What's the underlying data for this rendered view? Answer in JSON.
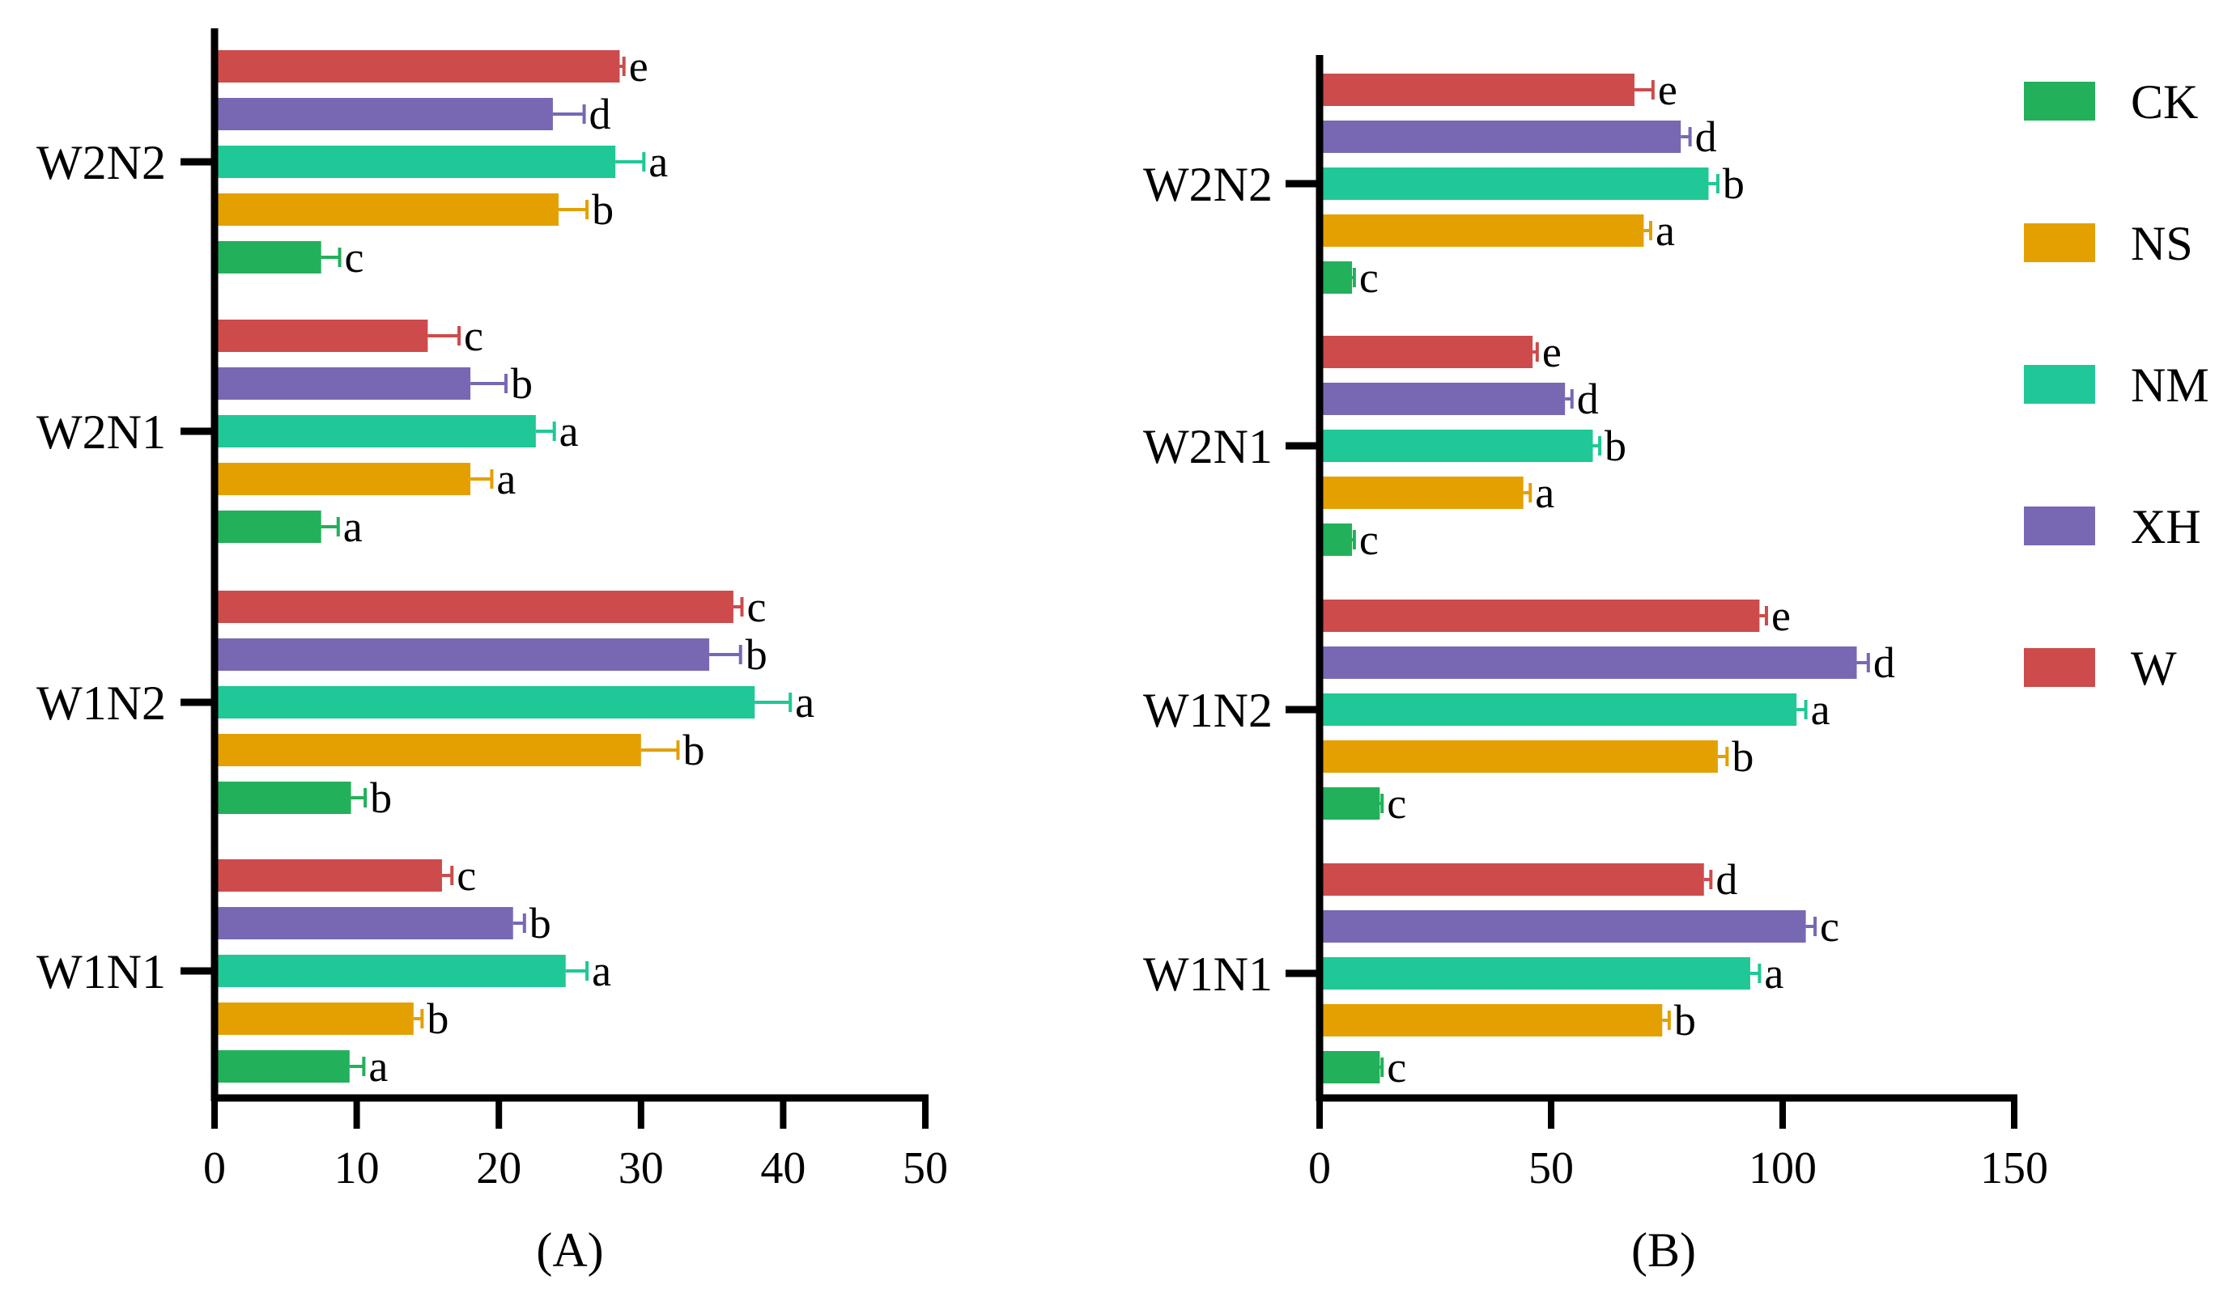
{
  "colors": {
    "CK": "#22b05a",
    "NS": "#e3a000",
    "NM": "#1fc896",
    "XH": "#7868b4",
    "W": "#cd4b4b",
    "axis": "#000000"
  },
  "legend": {
    "position": "right",
    "items": [
      "CK",
      "NS",
      "NM",
      "XH",
      "W"
    ]
  },
  "chart_data": [
    {
      "type": "bar",
      "orientation": "horizontal",
      "panel_label": "(A)",
      "title": "",
      "xlabel": "",
      "ylabel": "",
      "xlim": [
        0,
        50
      ],
      "xticks": [
        0,
        10,
        20,
        30,
        40,
        50
      ],
      "categories": [
        "W1N1",
        "W1N2",
        "W2N1",
        "W2N2"
      ],
      "series": [
        {
          "name": "CK",
          "values": [
            9.5,
            9.6,
            7.5,
            7.5
          ],
          "errors": [
            1.0,
            1.0,
            1.2,
            1.3
          ],
          "letters": [
            "a",
            "b",
            "a",
            "c"
          ]
        },
        {
          "name": "NS",
          "values": [
            14.0,
            30.0,
            18.0,
            24.2
          ],
          "errors": [
            0.6,
            2.6,
            1.5,
            2.0
          ],
          "letters": [
            "b",
            "b",
            "a",
            "b"
          ]
        },
        {
          "name": "NM",
          "values": [
            24.7,
            38.0,
            22.6,
            28.2
          ],
          "errors": [
            1.5,
            2.5,
            1.3,
            2.0
          ],
          "letters": [
            "a",
            "a",
            "a",
            "a"
          ]
        },
        {
          "name": "XH",
          "values": [
            21.0,
            34.8,
            18.0,
            23.8
          ],
          "errors": [
            0.8,
            2.2,
            2.5,
            2.2
          ],
          "letters": [
            "b",
            "b",
            "b",
            "d"
          ]
        },
        {
          "name": "W",
          "values": [
            16.0,
            36.5,
            15.0,
            28.5
          ],
          "errors": [
            0.7,
            0.6,
            2.2,
            0.3
          ],
          "letters": [
            "c",
            "c",
            "c",
            "e"
          ]
        }
      ]
    },
    {
      "type": "bar",
      "orientation": "horizontal",
      "panel_label": "(B)",
      "title": "",
      "xlabel": "",
      "ylabel": "",
      "xlim": [
        0,
        150
      ],
      "xticks": [
        0,
        50,
        100,
        150
      ],
      "categories": [
        "W1N1",
        "W1N2",
        "W2N1",
        "W2N2"
      ],
      "series": [
        {
          "name": "CK",
          "values": [
            13.0,
            13.0,
            7.0,
            7.0
          ],
          "errors": [
            0.5,
            0.5,
            0.5,
            0.5
          ],
          "letters": [
            "c",
            "c",
            "c",
            "c"
          ]
        },
        {
          "name": "NS",
          "values": [
            74.0,
            86.0,
            44.0,
            70.0
          ],
          "errors": [
            1.5,
            2.0,
            1.5,
            1.5
          ],
          "letters": [
            "b",
            "b",
            "a",
            "a"
          ]
        },
        {
          "name": "NM",
          "values": [
            93.0,
            103.0,
            59.0,
            84.0
          ],
          "errors": [
            2.0,
            2.0,
            1.5,
            2.0
          ],
          "letters": [
            "a",
            "a",
            "b",
            "b"
          ]
        },
        {
          "name": "XH",
          "values": [
            105.0,
            116.0,
            53.0,
            78.0
          ],
          "errors": [
            2.0,
            2.5,
            1.5,
            2.0
          ],
          "letters": [
            "c",
            "d",
            "d",
            "d"
          ]
        },
        {
          "name": "W",
          "values": [
            83.0,
            95.0,
            46.0,
            68.0
          ],
          "errors": [
            1.5,
            1.5,
            1.0,
            4.0
          ],
          "letters": [
            "d",
            "e",
            "e",
            "e"
          ]
        }
      ]
    }
  ]
}
